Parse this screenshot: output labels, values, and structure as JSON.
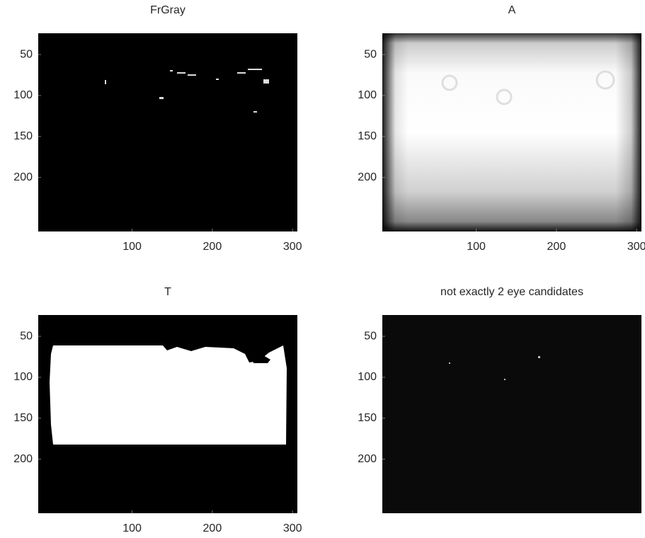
{
  "chart_data": [
    {
      "type": "image",
      "title": "FrGray",
      "xlim": [
        -17,
        306
      ],
      "ylim": [
        24,
        266
      ],
      "xticks": [
        100,
        200,
        300
      ],
      "yticks": [
        50,
        100,
        150,
        200
      ]
    },
    {
      "type": "image",
      "title": "A",
      "xlim": [
        -17,
        306
      ],
      "ylim": [
        24,
        266
      ],
      "xticks": [
        100,
        200,
        300
      ],
      "yticks": [
        50,
        100,
        150,
        200
      ]
    },
    {
      "type": "image",
      "title": "T",
      "xlim": [
        -17,
        306
      ],
      "ylim": [
        24,
        266
      ],
      "xticks": [
        100,
        200,
        300
      ],
      "yticks": [
        50,
        100,
        150,
        200
      ]
    },
    {
      "type": "image",
      "title": "not exactly 2 eye candidates",
      "xlim": [
        -17,
        306
      ],
      "ylim": [
        24,
        266
      ],
      "yticks": [
        50,
        100,
        150,
        200
      ]
    }
  ]
}
